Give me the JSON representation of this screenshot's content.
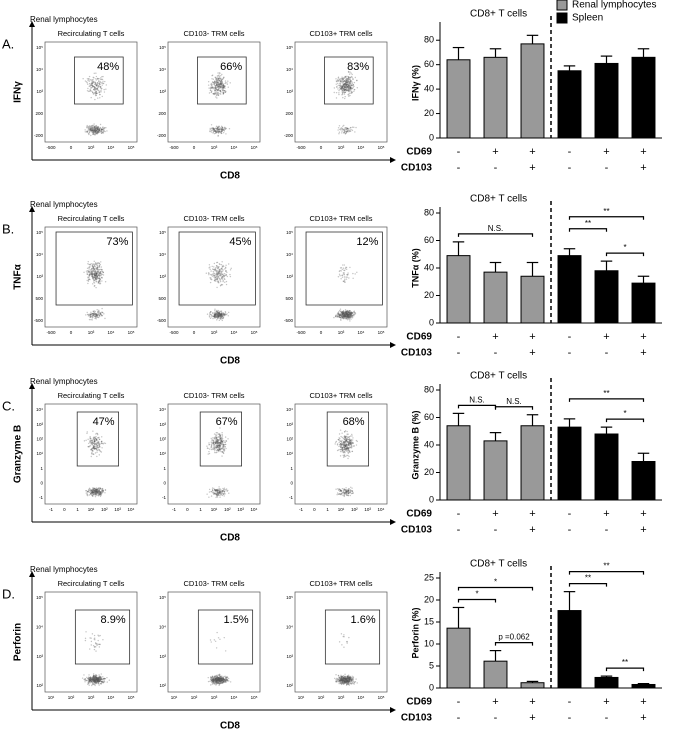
{
  "figure": {
    "panels": [
      {
        "letter": "A.",
        "source": "Renal lymphocytes",
        "marker": "IFNγ",
        "xlabel": "CD8",
        "flow": [
          {
            "title": "Recirculating T cells",
            "percent": "48%"
          },
          {
            "title": "CD103- TRM cells",
            "percent": "66%"
          },
          {
            "title": "CD103+ TRM cells",
            "percent": "83%"
          }
        ],
        "flow_xticks": [
          "-500",
          "0",
          "10³",
          "10⁴",
          "10⁵"
        ],
        "flow_yticks": [
          "10⁵",
          "10⁴",
          "10³",
          "200",
          "-200"
        ]
      },
      {
        "letter": "B.",
        "source": "Renal lymphocytes",
        "marker": "TNFα",
        "xlabel": "CD8",
        "flow": [
          {
            "title": "Recirculating T cells",
            "percent": "73%"
          },
          {
            "title": "CD103- TRM cells",
            "percent": "45%"
          },
          {
            "title": "CD103+ TRM cells",
            "percent": "12%"
          }
        ],
        "flow_xticks": [
          "-500",
          "0",
          "10³",
          "10⁴",
          "10⁵"
        ],
        "flow_yticks": [
          "10⁵",
          "10⁴",
          "10³",
          "500",
          "-500"
        ]
      },
      {
        "letter": "C.",
        "source": "Renal lymphocytes",
        "marker": "Granzyme B",
        "xlabel": "CD8",
        "flow": [
          {
            "title": "Recirculating T cells",
            "percent": "47%"
          },
          {
            "title": "CD103- TRM cells",
            "percent": "67%"
          },
          {
            "title": "CD103+ TRM cells",
            "percent": "68%"
          }
        ],
        "flow_xticks": [
          "-1",
          "0",
          "1",
          "10¹",
          "10²",
          "10³",
          "10⁴"
        ],
        "flow_yticks": [
          "10⁴",
          "10³",
          "10²",
          "10¹",
          "1",
          "0",
          "-1"
        ]
      },
      {
        "letter": "D.",
        "source": "Renal lymphocytes",
        "marker": "Perforin",
        "xlabel": "CD8",
        "flow": [
          {
            "title": "Recirculating T cells",
            "percent": "8.9%"
          },
          {
            "title": "CD103- TRM cells",
            "percent": "1.5%"
          },
          {
            "title": "CD103+ TRM cells",
            "percent": "1.6%"
          }
        ],
        "flow_xticks": [
          "10¹",
          "10²",
          "10³",
          "10⁴",
          "10⁵"
        ],
        "flow_yticks": [
          "10⁵",
          "10⁴",
          "10³",
          "10²"
        ]
      }
    ]
  },
  "chart_data": [
    {
      "type": "bar",
      "title": "CD8+ T cells",
      "ylabel": "IFNγ (%)",
      "ylim": [
        0,
        90
      ],
      "yticks": [
        0,
        20,
        40,
        60,
        80
      ],
      "legend": "top-right",
      "series": [
        {
          "name": "Renal lymphocytes",
          "color": "#999999",
          "values": [
            64,
            66,
            77
          ],
          "errors": [
            10,
            7,
            7
          ]
        },
        {
          "name": "Spleen",
          "color": "#000000",
          "values": [
            55,
            61,
            66
          ],
          "errors": [
            4,
            6,
            7
          ]
        }
      ],
      "conditions": [
        {
          "name": "CD69",
          "labels": [
            "-",
            "+",
            "+",
            "-",
            "+",
            "+"
          ]
        },
        {
          "name": "CD103",
          "labels": [
            "-",
            "-",
            "+",
            "-",
            "-",
            "+"
          ]
        }
      ],
      "brackets": []
    },
    {
      "type": "bar",
      "title": "CD8+ T cells",
      "ylabel": "TNFα (%)",
      "ylim": [
        0,
        80
      ],
      "yticks": [
        0,
        20,
        40,
        60,
        80
      ],
      "series": [
        {
          "color": "#999999",
          "values": [
            49,
            37,
            34
          ],
          "errors": [
            10,
            7,
            10
          ]
        },
        {
          "color": "#000000",
          "values": [
            49,
            38,
            29
          ],
          "errors": [
            5,
            7,
            5
          ]
        }
      ],
      "conditions": [
        {
          "name": "CD69",
          "labels": [
            "-",
            "+",
            "+",
            "-",
            "+",
            "+"
          ]
        },
        {
          "name": "CD103",
          "labels": [
            "-",
            "-",
            "+",
            "-",
            "-",
            "+"
          ]
        }
      ],
      "brackets": [
        {
          "label": "N.S."
        },
        {
          "label": "**"
        },
        {
          "label": "**"
        },
        {
          "label": "*"
        }
      ]
    },
    {
      "type": "bar",
      "title": "CD8+ T cells",
      "ylabel": "Granzyme B (%)",
      "ylim": [
        0,
        80
      ],
      "yticks": [
        0,
        20,
        40,
        60,
        80
      ],
      "series": [
        {
          "color": "#999999",
          "values": [
            54,
            43,
            54
          ],
          "errors": [
            9,
            6,
            8
          ]
        },
        {
          "color": "#000000",
          "values": [
            53,
            48,
            28
          ],
          "errors": [
            6,
            5,
            6
          ]
        }
      ],
      "conditions": [
        {
          "name": "CD69",
          "labels": [
            "-",
            "+",
            "+",
            "-",
            "+",
            "+"
          ]
        },
        {
          "name": "CD103",
          "labels": [
            "-",
            "-",
            "+",
            "-",
            "-",
            "+"
          ]
        }
      ],
      "brackets": [
        {
          "label": "N.S."
        },
        {
          "label": "N.S."
        },
        {
          "label": "**"
        },
        {
          "label": "*"
        }
      ]
    },
    {
      "type": "bar",
      "title": "CD8+ T cells",
      "ylabel": "Perforin (%)",
      "ylim": [
        0,
        25
      ],
      "yticks": [
        0,
        5,
        10,
        15,
        20,
        25
      ],
      "series": [
        {
          "color": "#999999",
          "values": [
            13.6,
            6.1,
            1.2
          ],
          "errors": [
            4.7,
            2.4,
            0.3
          ]
        },
        {
          "color": "#000000",
          "values": [
            17.6,
            2.4,
            0.8
          ],
          "errors": [
            4.3,
            0.3,
            0.2
          ]
        }
      ],
      "conditions": [
        {
          "name": "CD69",
          "labels": [
            "-",
            "+",
            "+",
            "-",
            "+",
            "+"
          ]
        },
        {
          "name": "CD103",
          "labels": [
            "-",
            "-",
            "+",
            "-",
            "-",
            "+"
          ]
        }
      ],
      "brackets": [
        {
          "label": "*"
        },
        {
          "label": "*"
        },
        {
          "label": "p =0.062"
        },
        {
          "label": "**"
        },
        {
          "label": "**"
        },
        {
          "label": "**"
        }
      ]
    }
  ]
}
